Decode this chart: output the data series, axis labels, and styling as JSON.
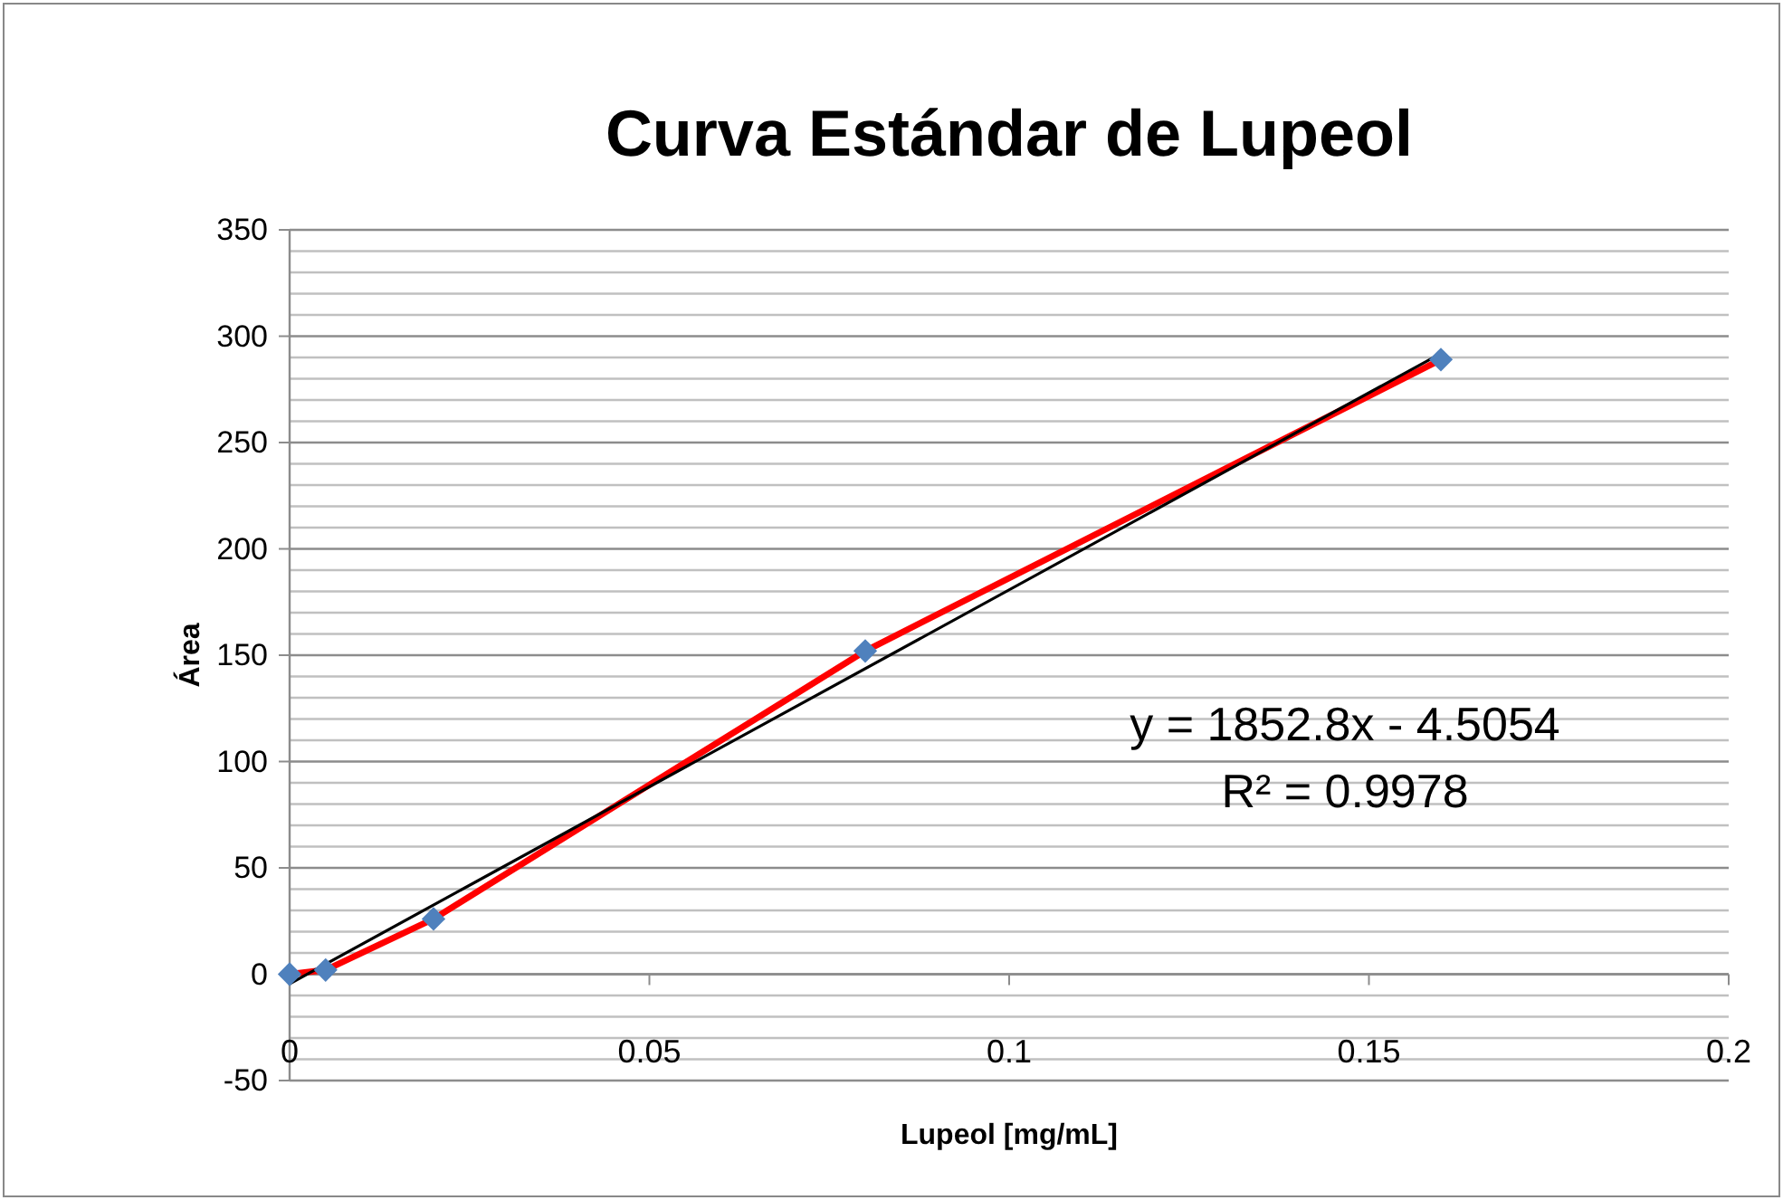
{
  "chart_data": {
    "type": "scatter",
    "title": "Curva Estándar de Lupeol",
    "xlabel": "Lupeol [mg/mL]",
    "ylabel": "Área",
    "xlim": [
      0,
      0.2
    ],
    "xticks": [
      0,
      0.05,
      0.1,
      0.15,
      0.2
    ],
    "ylim": [
      -50,
      350
    ],
    "yticks": [
      -50,
      {
        "value": -40,
        "label": null
      },
      {
        "value": -30,
        "label": null
      },
      {
        "value": -20,
        "label": null
      },
      {
        "value": -10,
        "label": null
      },
      0,
      {
        "value": 10,
        "label": null
      },
      {
        "value": 20,
        "label": null
      },
      {
        "value": 30,
        "label": null
      },
      {
        "value": 40,
        "label": null
      },
      50,
      {
        "value": 60,
        "label": null
      },
      {
        "value": 70,
        "label": null
      },
      {
        "value": 80,
        "label": null
      },
      {
        "value": 90,
        "label": null
      },
      100,
      {
        "value": 110,
        "label": null
      },
      {
        "value": 120,
        "label": null
      },
      {
        "value": 130,
        "label": null
      },
      {
        "value": 140,
        "label": null
      },
      150,
      {
        "value": 160,
        "label": null
      },
      {
        "value": 170,
        "label": null
      },
      {
        "value": 180,
        "label": null
      },
      {
        "value": 190,
        "label": null
      },
      200,
      {
        "value": 210,
        "label": null
      },
      {
        "value": 220,
        "label": null
      },
      {
        "value": 230,
        "label": null
      },
      {
        "value": 240,
        "label": null
      },
      250,
      {
        "value": 260,
        "label": null
      },
      {
        "value": 270,
        "label": null
      },
      {
        "value": 280,
        "label": null
      },
      {
        "value": 290,
        "label": null
      },
      300,
      {
        "value": 310,
        "label": null
      },
      {
        "value": 320,
        "label": null
      },
      {
        "value": 330,
        "label": null
      },
      {
        "value": 340,
        "label": null
      },
      350
    ],
    "grid": "y",
    "series": [
      {
        "type": "line",
        "color": "#ff0000",
        "marker": "none",
        "x": [
          0,
          0.005,
          0.02,
          0.08,
          0.16
        ],
        "values": [
          0,
          2,
          26,
          152,
          289
        ]
      },
      {
        "type": "line",
        "color": "#000000",
        "marker": "none",
        "x": [
          0,
          0.16
        ],
        "values": [
          -4.5,
          291.9
        ]
      },
      {
        "color": "#4f81bd",
        "marker": "diamond",
        "x": [
          0,
          0.005,
          0.02,
          0.08,
          0.16
        ],
        "values": [
          0,
          2,
          26,
          152,
          289
        ]
      }
    ],
    "annotations": [
      "y = 1852.8x - 4.5054",
      "R² = 0.9978"
    ]
  }
}
